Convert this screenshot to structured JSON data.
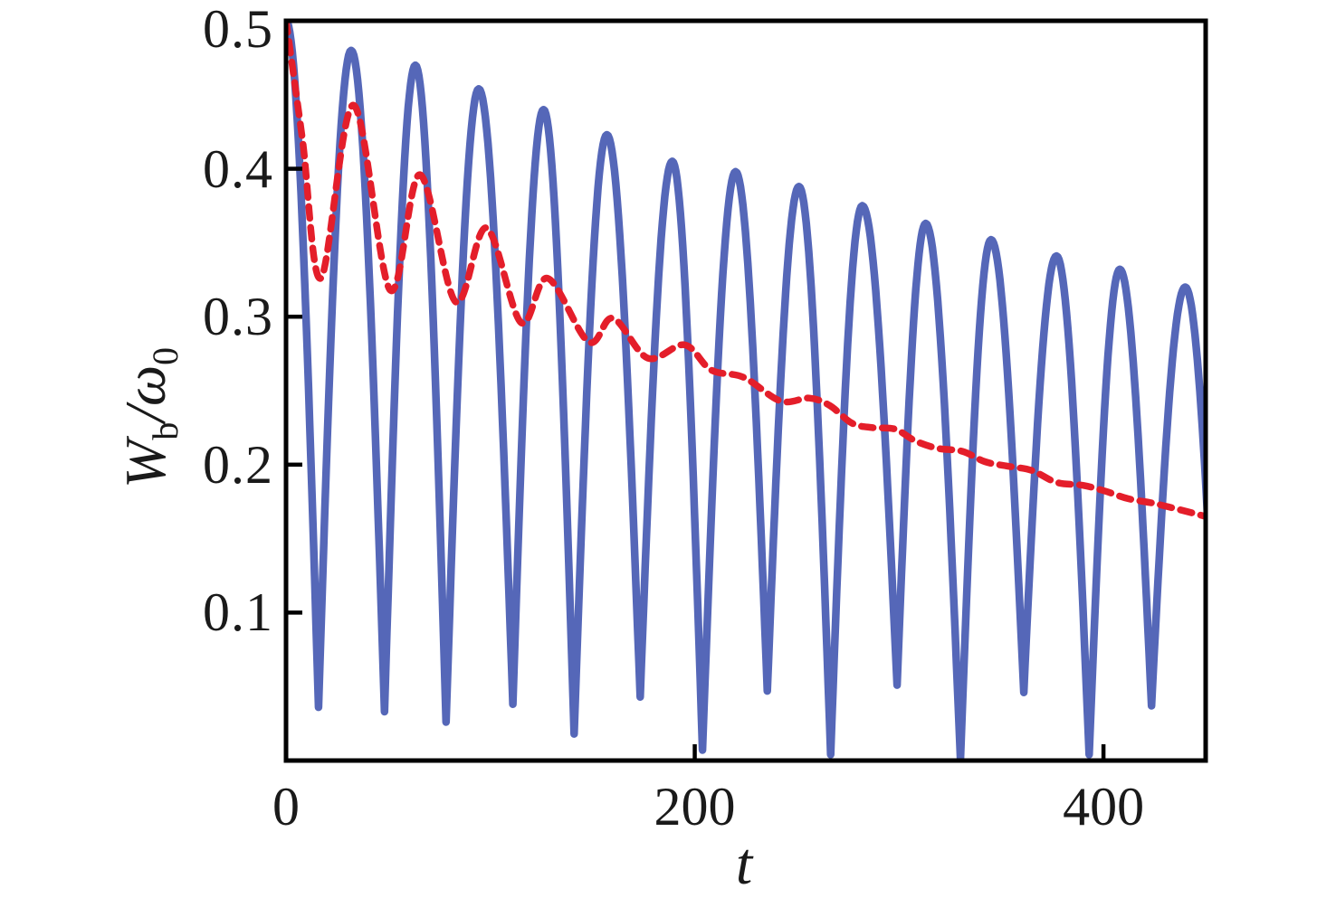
{
  "figure": {
    "background_color": "#ffffff",
    "frame_color": "#000000",
    "frame_line_width": 5,
    "tick_length": 16,
    "tick_width": 4.5
  },
  "axes": {
    "x": {
      "label": "t",
      "range": [
        0,
        450
      ],
      "ticks": [
        {
          "value": 0,
          "label": "0"
        },
        {
          "value": 200,
          "label": "200"
        },
        {
          "value": 400,
          "label": "400"
        }
      ]
    },
    "y": {
      "label_parts": {
        "base": "W",
        "base_sub": "b",
        "divider": "/ω",
        "divider_sub": "0"
      },
      "range": [
        0,
        0.5
      ],
      "ticks": [
        {
          "value": 0.1,
          "label": "0.1"
        },
        {
          "value": 0.2,
          "label": "0.2"
        },
        {
          "value": 0.3,
          "label": "0.3"
        },
        {
          "value": 0.4,
          "label": "0.4"
        },
        {
          "value": 0.5,
          "label": "0.5"
        }
      ]
    }
  },
  "chart_data": {
    "type": "line",
    "title": "",
    "xlabel": "t",
    "ylabel": "W_b/omega_0",
    "xlim": [
      0,
      450
    ],
    "ylim": [
      0,
      0.5
    ],
    "grid": false,
    "legend": false,
    "series": [
      {
        "name": "solid-blue-oscillation",
        "style": "solid",
        "color": "#5567b8",
        "line_width": 8.5,
        "shape": "round-peak-sharp-trough",
        "extrema_comment": "alternating [t,value] peak,trough,peak,... ; last point is off-frame continuation",
        "extrema": [
          [
            0,
            0.5
          ],
          [
            15.9,
            0.036
          ],
          [
            31.9,
            0.48
          ],
          [
            48.2,
            0.033
          ],
          [
            63.3,
            0.47
          ],
          [
            78.3,
            0.026
          ],
          [
            94.3,
            0.454
          ],
          [
            111,
            0.038
          ],
          [
            126,
            0.44
          ],
          [
            141,
            0.018
          ],
          [
            157,
            0.423
          ],
          [
            173.3,
            0.043
          ],
          [
            189,
            0.405
          ],
          [
            203.8,
            0.007
          ],
          [
            220,
            0.398
          ],
          [
            235.5,
            0.047
          ],
          [
            251,
            0.388
          ],
          [
            266.5,
            0.004
          ],
          [
            282,
            0.375
          ],
          [
            299,
            0.051
          ],
          [
            313,
            0.363
          ],
          [
            330,
            0.001
          ],
          [
            345,
            0.352
          ],
          [
            361,
            0.046
          ],
          [
            377,
            0.341
          ],
          [
            393,
            0.004
          ],
          [
            408,
            0.332
          ],
          [
            423.5,
            0.037
          ],
          [
            440,
            0.32
          ],
          [
            455.5,
            0.04
          ]
        ]
      },
      {
        "name": "dashed-red-damped-curve",
        "style": "dashed",
        "color": "#e41e2a",
        "line_width": 7.5,
        "dash": [
          13,
          10
        ],
        "points": [
          [
            0,
            0.5
          ],
          [
            8,
            0.42
          ],
          [
            17,
            0.326
          ],
          [
            33,
            0.443
          ],
          [
            51,
            0.318
          ],
          [
            65.5,
            0.396
          ],
          [
            83,
            0.31
          ],
          [
            98,
            0.36
          ],
          [
            115,
            0.296
          ],
          [
            128,
            0.326
          ],
          [
            148,
            0.283
          ],
          [
            160,
            0.299
          ],
          [
            177,
            0.272
          ],
          [
            195,
            0.281
          ],
          [
            208,
            0.264
          ],
          [
            224,
            0.259
          ],
          [
            242,
            0.243
          ],
          [
            256,
            0.245
          ],
          [
            266,
            0.24
          ],
          [
            277,
            0.228
          ],
          [
            287,
            0.225
          ],
          [
            298,
            0.224
          ],
          [
            308,
            0.216
          ],
          [
            319,
            0.211
          ],
          [
            331,
            0.209
          ],
          [
            342,
            0.202
          ],
          [
            353,
            0.199
          ],
          [
            365,
            0.196
          ],
          [
            377,
            0.188
          ],
          [
            390,
            0.186
          ],
          [
            401,
            0.182
          ],
          [
            412,
            0.177
          ],
          [
            424,
            0.174
          ],
          [
            436,
            0.17
          ],
          [
            450,
            0.165
          ]
        ]
      }
    ]
  }
}
